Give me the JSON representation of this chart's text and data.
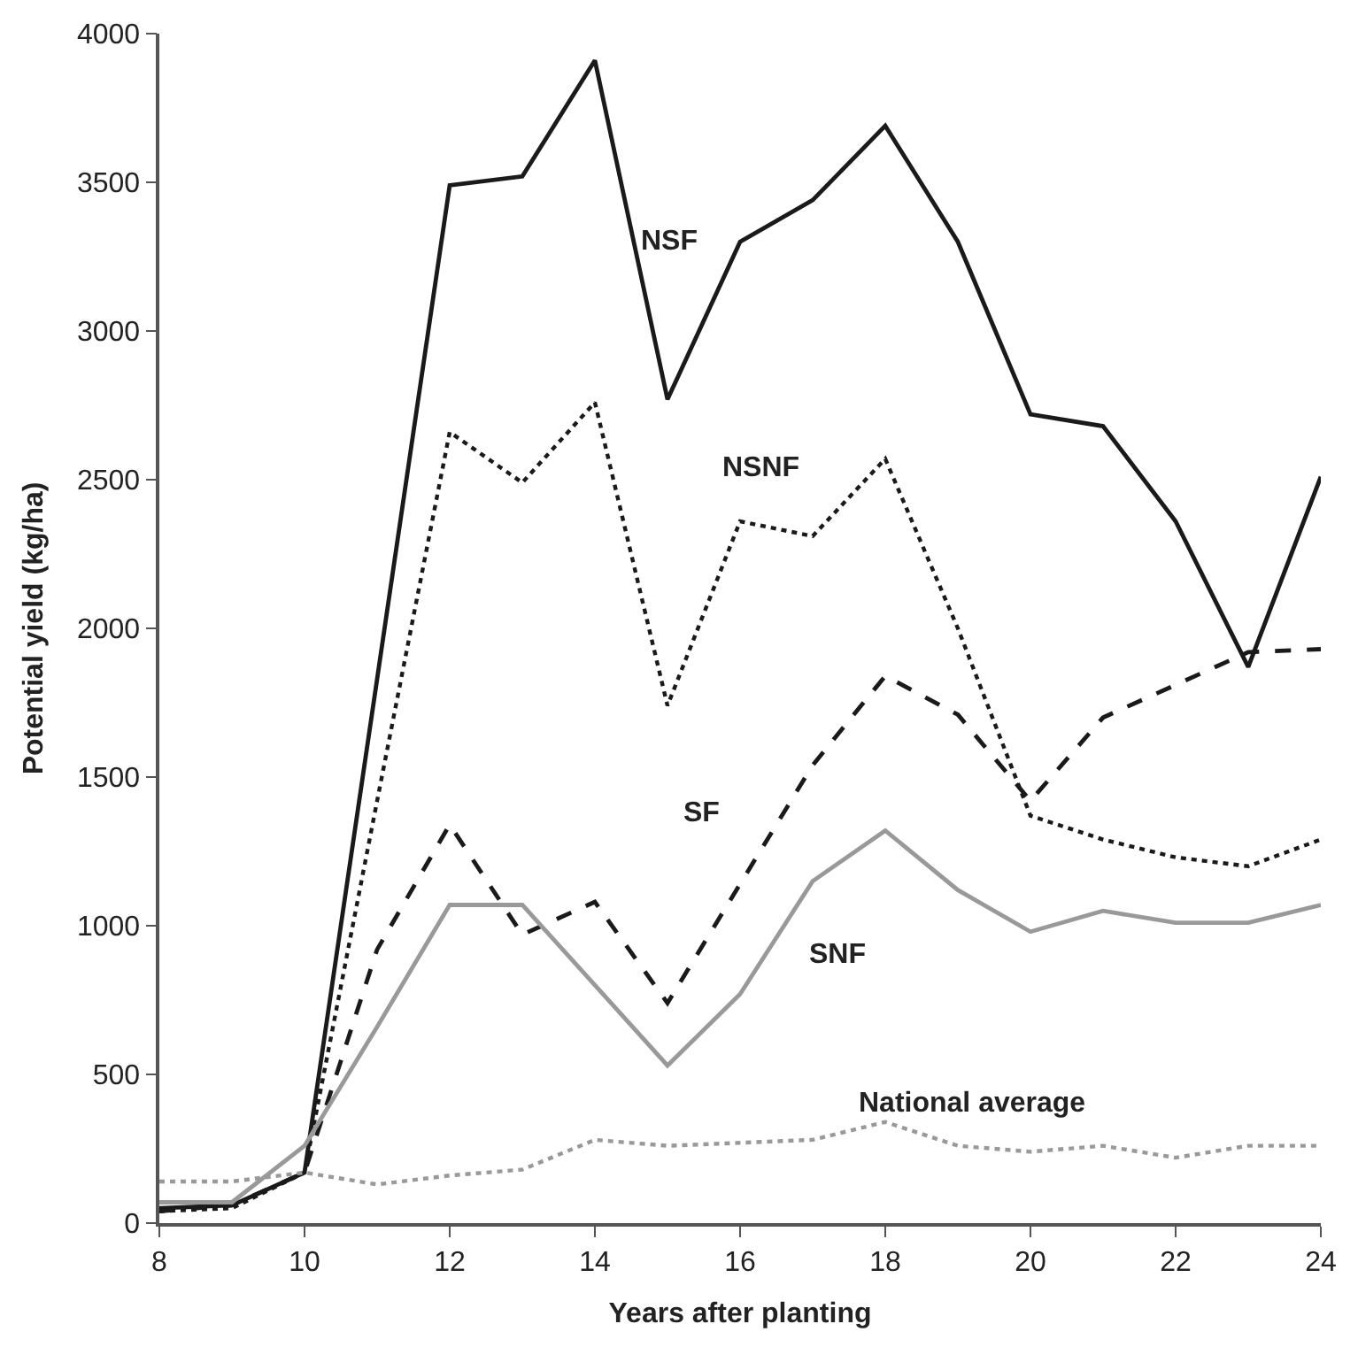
{
  "chart_data": {
    "type": "line",
    "xlabel": "Years after planting",
    "ylabel": "Potential yield (kg/ha)",
    "x": [
      8,
      9,
      10,
      11,
      12,
      13,
      14,
      15,
      16,
      17,
      18,
      19,
      20,
      21,
      22,
      23,
      24
    ],
    "xlim": [
      8,
      24
    ],
    "xticks": [
      8,
      10,
      12,
      14,
      16,
      18,
      20,
      22,
      24
    ],
    "ylim": [
      0,
      4000
    ],
    "yticks": [
      0,
      500,
      1000,
      1500,
      2000,
      2500,
      3000,
      3500,
      4000
    ],
    "legend": false,
    "marker": "none",
    "series": [
      {
        "name": "NSF",
        "color": "#1a1a1a",
        "line_style": "solid",
        "values": [
          50,
          60,
          170,
          1830,
          3490,
          3520,
          3910,
          2770,
          3300,
          3440,
          3690,
          3300,
          2720,
          2680,
          2360,
          1870,
          2510
        ]
      },
      {
        "name": "NSNF",
        "color": "#1a1a1a",
        "line_style": "dotted",
        "values": [
          40,
          50,
          170,
          1420,
          2660,
          2490,
          2760,
          1740,
          2360,
          2310,
          2570,
          2000,
          1370,
          1290,
          1230,
          1200,
          1290
        ]
      },
      {
        "name": "SF",
        "color": "#1a1a1a",
        "line_style": "dashed",
        "values": [
          40,
          60,
          170,
          920,
          1340,
          970,
          1080,
          740,
          1140,
          1540,
          1840,
          1710,
          1420,
          1700,
          1810,
          1920,
          1930
        ]
      },
      {
        "name": "SNF",
        "color": "#999999",
        "line_style": "solid",
        "values": [
          70,
          70,
          260,
          660,
          1070,
          1070,
          800,
          530,
          770,
          1150,
          1320,
          1120,
          980,
          1050,
          1010,
          1010,
          1070
        ]
      },
      {
        "name": "National average",
        "color": "#999999",
        "line_style": "dotted",
        "values": [
          140,
          140,
          170,
          130,
          160,
          180,
          280,
          260,
          270,
          280,
          340,
          260,
          240,
          260,
          220,
          260,
          260
        ]
      }
    ]
  }
}
